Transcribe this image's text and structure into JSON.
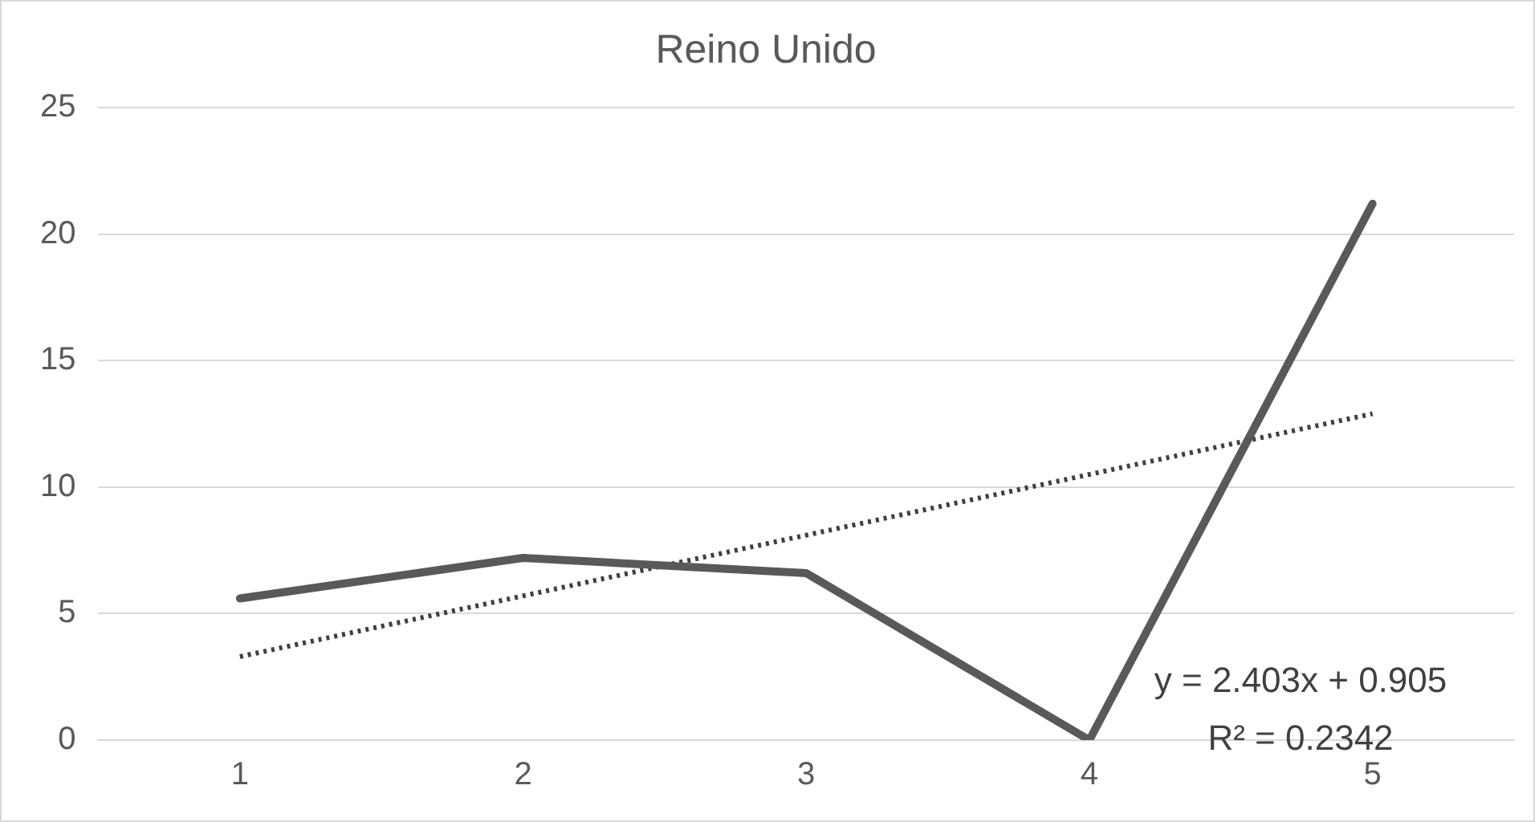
{
  "chart_data": {
    "type": "line",
    "title": "Reino Unido",
    "x": [
      1,
      2,
      3,
      4,
      5
    ],
    "xlim": [
      0.5,
      5.5
    ],
    "xticks": [
      1,
      2,
      3,
      4,
      5
    ],
    "ylim": [
      0,
      25
    ],
    "yticks": [
      0,
      5,
      10,
      15,
      20,
      25
    ],
    "grid": "y",
    "marker": "none",
    "series": [
      {
        "color": "#595959",
        "values": [
          5.6,
          7.2,
          6.6,
          0,
          21.2
        ]
      },
      {
        "type": "line",
        "x": [
          1,
          5
        ],
        "values": [
          3.3,
          12.9
        ],
        "color": "#404040",
        "line_style": "dotted"
      }
    ],
    "annotations": [
      "y = 2.403x + 0.905",
      "R² = 0.2342"
    ]
  }
}
